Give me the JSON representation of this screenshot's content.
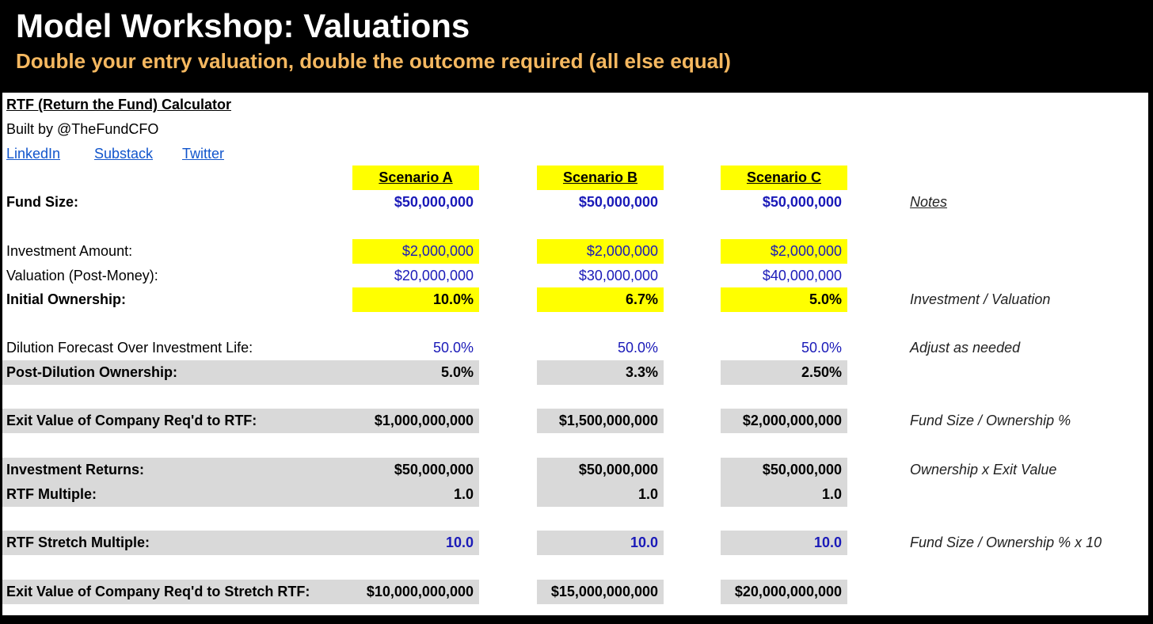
{
  "title": "Model Workshop: Valuations",
  "subtitle": "Double your entry valuation, double the outcome required (all else equal)",
  "sheet": {
    "calc_title": "RTF (Return the Fund) Calculator",
    "built_by": "Built by @TheFundCFO",
    "links": [
      "LinkedIn",
      "Substack",
      "Twitter"
    ],
    "scenarios": [
      "Scenario A",
      "Scenario B",
      "Scenario C"
    ],
    "notes_header": "Notes",
    "rows": {
      "fund_size": {
        "label": "Fund Size:",
        "values": [
          "$50,000,000",
          "$50,000,000",
          "$50,000,000"
        ]
      },
      "investment_amount": {
        "label": "Investment Amount:",
        "values": [
          "$2,000,000",
          "$2,000,000",
          "$2,000,000"
        ]
      },
      "valuation": {
        "label": "Valuation (Post-Money):",
        "values": [
          "$20,000,000",
          "$30,000,000",
          "$40,000,000"
        ]
      },
      "initial_ownership": {
        "label": "Initial Ownership:",
        "values": [
          "10.0%",
          "6.7%",
          "5.0%"
        ],
        "note": "Investment / Valuation"
      },
      "dilution": {
        "label": "Dilution Forecast Over Investment Life:",
        "values": [
          "50.0%",
          "50.0%",
          "50.0%"
        ],
        "note": "Adjust as needed"
      },
      "post_dilution": {
        "label": "Post-Dilution Ownership:",
        "values": [
          "5.0%",
          "3.3%",
          "2.50%"
        ]
      },
      "exit_value_rtf": {
        "label": "Exit Value of Company Req'd to RTF:",
        "values": [
          "$1,000,000,000",
          "$1,500,000,000",
          "$2,000,000,000"
        ],
        "note": "Fund Size / Ownership %"
      },
      "investment_returns": {
        "label": "Investment Returns:",
        "values": [
          "$50,000,000",
          "$50,000,000",
          "$50,000,000"
        ],
        "note": "Ownership x Exit Value"
      },
      "rtf_multiple": {
        "label": "RTF Multiple:",
        "values": [
          "1.0",
          "1.0",
          "1.0"
        ]
      },
      "rtf_stretch_multiple": {
        "label": "RTF Stretch Multiple:",
        "values": [
          "10.0",
          "10.0",
          "10.0"
        ],
        "note": "Fund Size / Ownership % x 10"
      },
      "exit_value_stretch": {
        "label": "Exit Value of Company Req'd to Stretch RTF:",
        "values": [
          "$10,000,000,000",
          "$15,000,000,000",
          "$20,000,000,000"
        ]
      }
    }
  },
  "colors": {
    "title": "#ffffff",
    "subtitle": "#f5b860",
    "highlight_yellow": "#ffff00",
    "shaded_gray": "#d9d9d9",
    "input_blue": "#1a1ab8",
    "link_blue": "#1155cc"
  }
}
